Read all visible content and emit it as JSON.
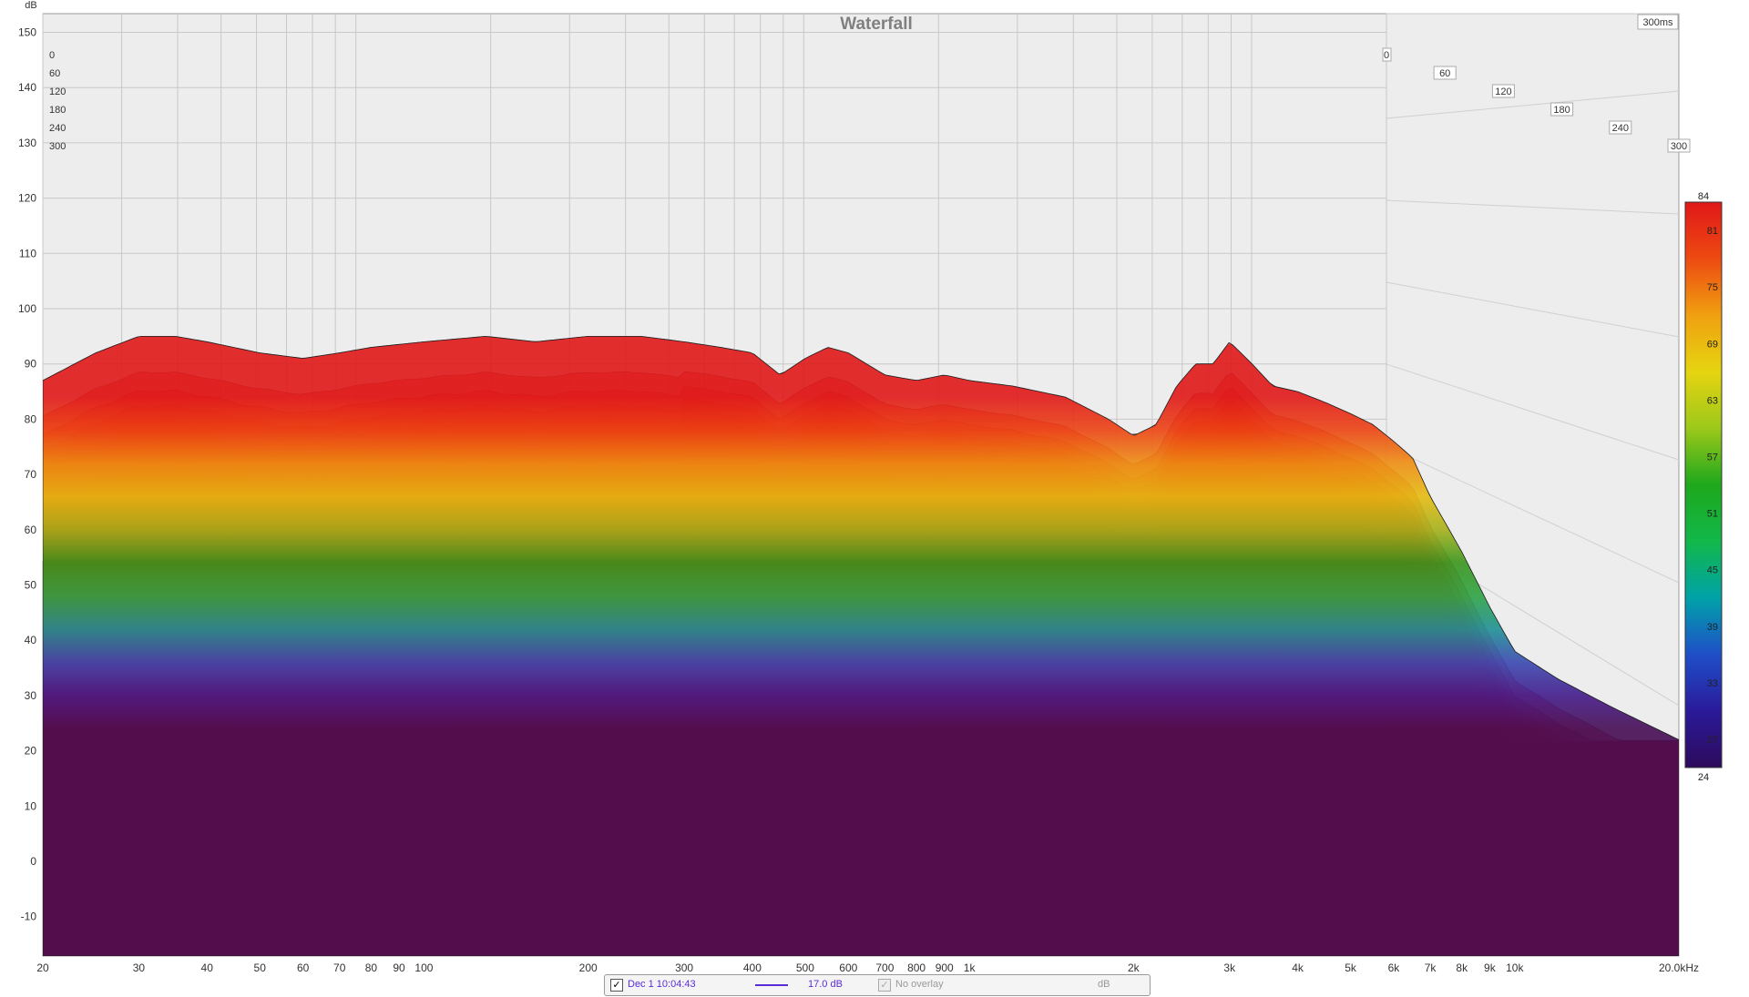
{
  "chart_data": {
    "type": "area",
    "title": "Waterfall",
    "ylabel": "dB",
    "xlabel": "",
    "x_scale": "log",
    "xlim": [
      20,
      20000
    ],
    "ylim": [
      -15,
      152
    ],
    "time_label": "300ms",
    "x_ticks": [
      20,
      30,
      40,
      50,
      60,
      70,
      80,
      90,
      100,
      200,
      300,
      400,
      500,
      600,
      700,
      800,
      900,
      1000,
      2000,
      3000,
      4000,
      5000,
      6000,
      7000,
      8000,
      9000,
      10000,
      20000
    ],
    "x_tick_labels": [
      "20",
      "30",
      "40",
      "50",
      "60",
      "70",
      "80",
      "90",
      "100",
      "200",
      "300",
      "400",
      "500",
      "600",
      "700",
      "800",
      "900",
      "1k",
      "2k",
      "3k",
      "4k",
      "5k",
      "6k",
      "7k",
      "8k",
      "9k",
      "10k",
      "20.0kHz"
    ],
    "y_ticks": [
      150,
      140,
      130,
      120,
      110,
      100,
      90,
      80,
      70,
      60,
      50,
      40,
      30,
      20,
      10,
      0,
      -10
    ],
    "y_tick_labels": [
      "150",
      "140",
      "130",
      "120",
      "110",
      "100",
      "90",
      "80",
      "70",
      "60",
      "50",
      "40",
      "30",
      "20",
      "10",
      "0",
      "-10"
    ],
    "time_ticks_ms": [
      0,
      60,
      120,
      180,
      240,
      300
    ],
    "time_tick_labels": [
      "0",
      "60",
      "120",
      "180",
      "240",
      "300"
    ],
    "time_tick_labels_left": [
      "0",
      "60",
      "120",
      "180",
      "240",
      "300"
    ],
    "colorbar": {
      "min": 24,
      "max": 84,
      "ticks": [
        84,
        81,
        75,
        69,
        63,
        57,
        51,
        45,
        39,
        33,
        27,
        24
      ],
      "tick_labels": [
        "84",
        "81",
        "75",
        "69",
        "63",
        "57",
        "51",
        "45",
        "39",
        "33",
        "27",
        "24"
      ],
      "stops": [
        "#2d0a5c",
        "#2a1a9a",
        "#1f4fc8",
        "#00a2a8",
        "#12b84a",
        "#1ea81c",
        "#9cc81a",
        "#e6d410",
        "#f0a010",
        "#ee4a12",
        "#e01818"
      ]
    },
    "series": [
      {
        "time_ms": 0,
        "freq_hz": [
          20,
          25,
          30,
          35,
          40,
          50,
          60,
          70,
          80,
          100,
          130,
          160,
          200,
          250,
          300,
          350,
          400,
          450,
          500,
          550,
          600,
          700,
          800,
          900,
          1000,
          1200,
          1500,
          1800,
          2000,
          2200,
          2400,
          2600,
          2800,
          3000,
          3300,
          3600,
          4000,
          4500,
          5000,
          5500,
          6000,
          6500,
          7000,
          8000,
          9000,
          10000,
          12000,
          15000,
          20000
        ],
        "values_db": [
          87,
          92,
          95,
          95,
          94,
          92,
          91,
          92,
          93,
          94,
          95,
          94,
          95,
          95,
          94,
          93,
          92,
          88,
          91,
          93,
          92,
          88,
          87,
          88,
          87,
          86,
          84,
          80,
          77,
          79,
          86,
          90,
          90,
          94,
          90,
          86,
          85,
          83,
          81,
          79,
          76,
          73,
          66,
          56,
          46,
          38,
          33,
          28,
          22
        ]
      }
    ]
  },
  "legend": {
    "checkbox_mark": "✓",
    "trace_label": "Dec 1 10:04:43",
    "trace_color": "#5a2bd8",
    "smoothing": "17.0 dB",
    "overlay_label": "No overlay",
    "unit": "dB"
  }
}
